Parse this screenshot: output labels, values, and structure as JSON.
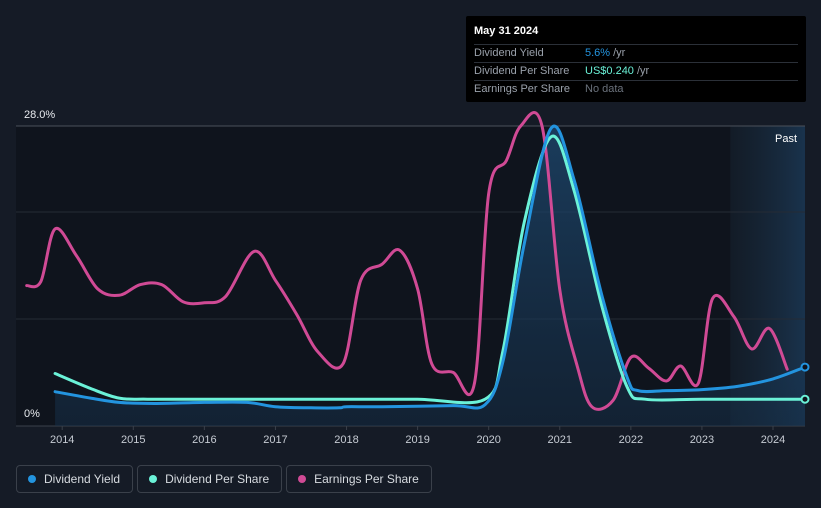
{
  "tooltip": {
    "date": "May 31 2024",
    "rows": [
      {
        "label": "Dividend Yield",
        "value": "5.6%",
        "unit": "/yr"
      },
      {
        "label": "Dividend Per Share",
        "value": "US$0.240",
        "unit": "/yr"
      },
      {
        "label": "Earnings Per Share",
        "value": "No data"
      }
    ]
  },
  "legend": [
    {
      "label": "Dividend Yield",
      "color": "#2394df"
    },
    {
      "label": "Dividend Per Share",
      "color": "#6bf2d8"
    },
    {
      "label": "Earnings Per Share",
      "color": "#d04a95"
    }
  ],
  "chart_data": {
    "type": "line",
    "title": "",
    "y_max_label": "28.0%",
    "y_min_label": "0%",
    "past_label": "Past",
    "ylim": [
      0,
      28
    ],
    "xlim": [
      2013.35,
      2024.45
    ],
    "past_region_start": 2023.4,
    "x_ticks": [
      "2014",
      "2015",
      "2016",
      "2017",
      "2018",
      "2019",
      "2020",
      "2021",
      "2022",
      "2023",
      "2024"
    ],
    "series": [
      {
        "name": "Earnings Per Share",
        "color": "#d04a95",
        "points": [
          [
            2013.5,
            13.1
          ],
          [
            2013.7,
            13.5
          ],
          [
            2013.9,
            18.4
          ],
          [
            2014.2,
            15.9
          ],
          [
            2014.5,
            12.8
          ],
          [
            2014.8,
            12.2
          ],
          [
            2015.1,
            13.2
          ],
          [
            2015.4,
            13.2
          ],
          [
            2015.7,
            11.6
          ],
          [
            2016.0,
            11.5
          ],
          [
            2016.3,
            12.1
          ],
          [
            2016.7,
            16.3
          ],
          [
            2017.0,
            13.6
          ],
          [
            2017.3,
            10.4
          ],
          [
            2017.6,
            6.9
          ],
          [
            2017.95,
            5.8
          ],
          [
            2018.2,
            13.6
          ],
          [
            2018.5,
            15.1
          ],
          [
            2018.75,
            16.4
          ],
          [
            2019.0,
            12.8
          ],
          [
            2019.2,
            5.8
          ],
          [
            2019.5,
            5.0
          ],
          [
            2019.8,
            4.0
          ],
          [
            2020.0,
            21.7
          ],
          [
            2020.25,
            24.8
          ],
          [
            2020.45,
            28.0
          ],
          [
            2020.75,
            28.0
          ],
          [
            2021.0,
            12.7
          ],
          [
            2021.25,
            5.5
          ],
          [
            2021.45,
            1.8
          ],
          [
            2021.75,
            2.4
          ],
          [
            2022.0,
            6.4
          ],
          [
            2022.25,
            5.4
          ],
          [
            2022.5,
            4.2
          ],
          [
            2022.7,
            5.6
          ],
          [
            2022.95,
            4.0
          ],
          [
            2023.15,
            11.9
          ],
          [
            2023.45,
            10.2
          ],
          [
            2023.7,
            7.2
          ],
          [
            2023.95,
            9.1
          ],
          [
            2024.2,
            5.3
          ]
        ]
      },
      {
        "name": "Dividend Per Share",
        "color": "#6bf2d8",
        "points": [
          [
            2013.9,
            4.9
          ],
          [
            2014.4,
            3.5
          ],
          [
            2014.8,
            2.6
          ],
          [
            2015.2,
            2.5
          ],
          [
            2016.0,
            2.5
          ],
          [
            2017.0,
            2.5
          ],
          [
            2018.0,
            2.5
          ],
          [
            2019.0,
            2.5
          ],
          [
            2019.95,
            2.5
          ],
          [
            2020.2,
            7.0
          ],
          [
            2020.5,
            19.0
          ],
          [
            2020.88,
            27.0
          ],
          [
            2021.2,
            22.0
          ],
          [
            2021.6,
            11.0
          ],
          [
            2021.95,
            3.6
          ],
          [
            2022.2,
            2.5
          ],
          [
            2023.0,
            2.5
          ],
          [
            2024.0,
            2.5
          ],
          [
            2024.45,
            2.5
          ]
        ]
      },
      {
        "name": "Dividend Yield",
        "color": "#2394df",
        "fill": true,
        "points": [
          [
            2013.9,
            3.2
          ],
          [
            2014.4,
            2.6
          ],
          [
            2014.8,
            2.2
          ],
          [
            2015.3,
            2.1
          ],
          [
            2016.0,
            2.2
          ],
          [
            2016.6,
            2.2
          ],
          [
            2017.0,
            1.8
          ],
          [
            2017.5,
            1.7
          ],
          [
            2017.9,
            1.7
          ],
          [
            2018.0,
            1.8
          ],
          [
            2018.5,
            1.8
          ],
          [
            2019.5,
            1.9
          ],
          [
            2019.95,
            2.0
          ],
          [
            2020.2,
            6.0
          ],
          [
            2020.5,
            17.0
          ],
          [
            2020.88,
            27.8
          ],
          [
            2021.2,
            23.0
          ],
          [
            2021.6,
            12.0
          ],
          [
            2021.95,
            4.5
          ],
          [
            2022.1,
            3.3
          ],
          [
            2022.5,
            3.3
          ],
          [
            2023.0,
            3.4
          ],
          [
            2023.5,
            3.7
          ],
          [
            2024.0,
            4.4
          ],
          [
            2024.45,
            5.5
          ]
        ]
      }
    ]
  }
}
